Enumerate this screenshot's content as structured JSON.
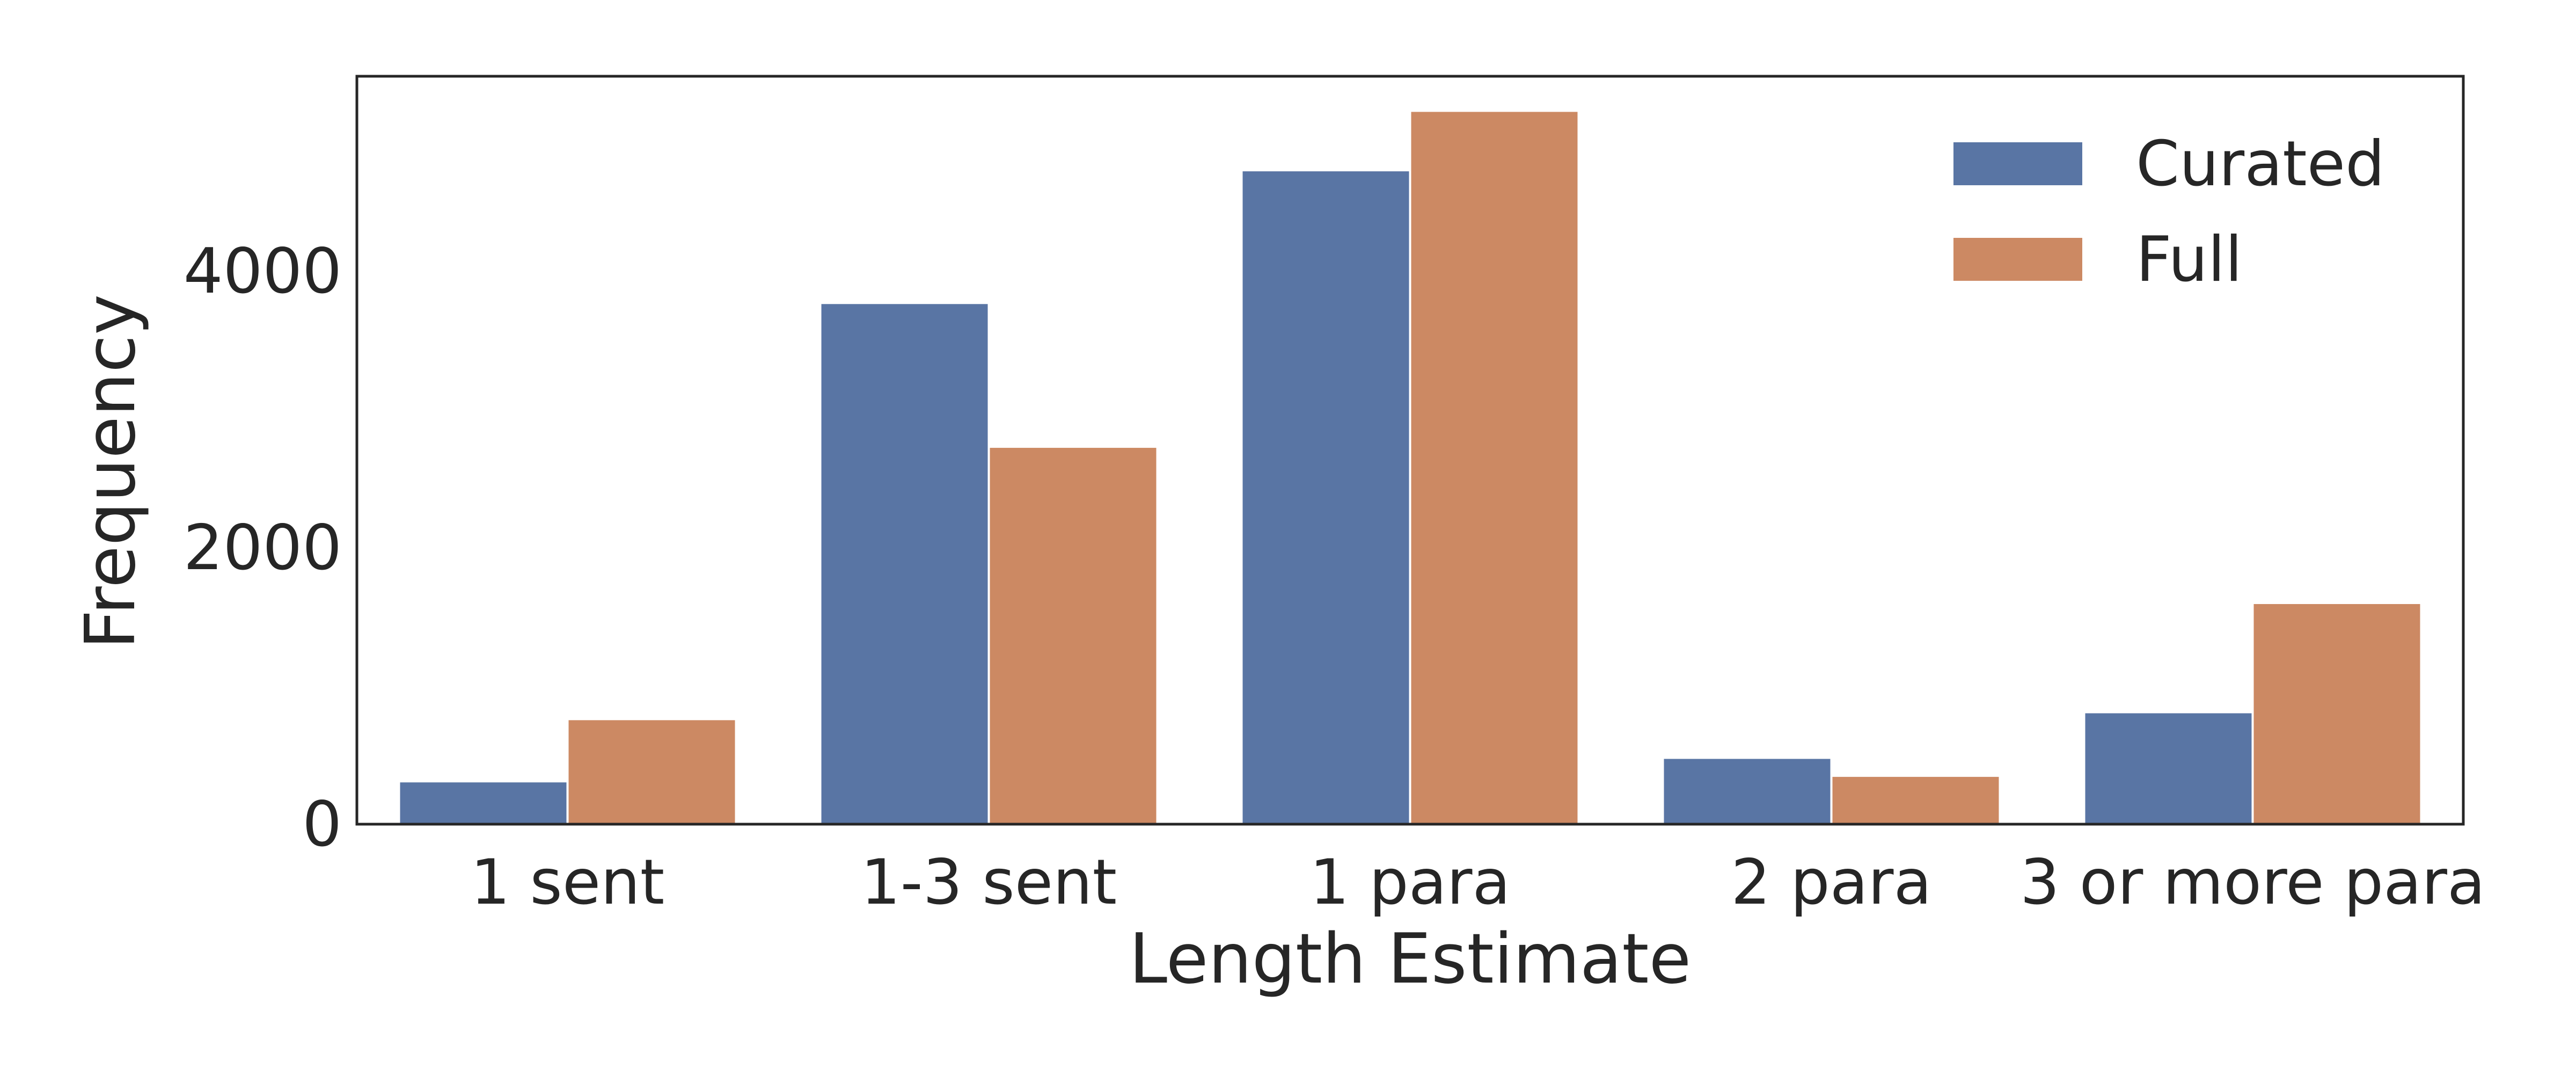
{
  "chart_data": {
    "type": "bar",
    "title": "",
    "xlabel": "Length Estimate",
    "ylabel": "Frequency",
    "categories": [
      "1 sent",
      "1-3 sent",
      "1 para",
      "2 para",
      "3 or more para"
    ],
    "series": [
      {
        "name": "Curated",
        "color": "#5975a4",
        "values": [
          310,
          3770,
          4730,
          480,
          810
        ]
      },
      {
        "name": "Full",
        "color": "#cc8963",
        "values": [
          760,
          2730,
          5160,
          350,
          1600
        ]
      }
    ],
    "ylim": [
      0,
      5410
    ],
    "yticks": [
      0,
      2000,
      4000
    ],
    "grid": false,
    "legend_position": "top-right"
  }
}
